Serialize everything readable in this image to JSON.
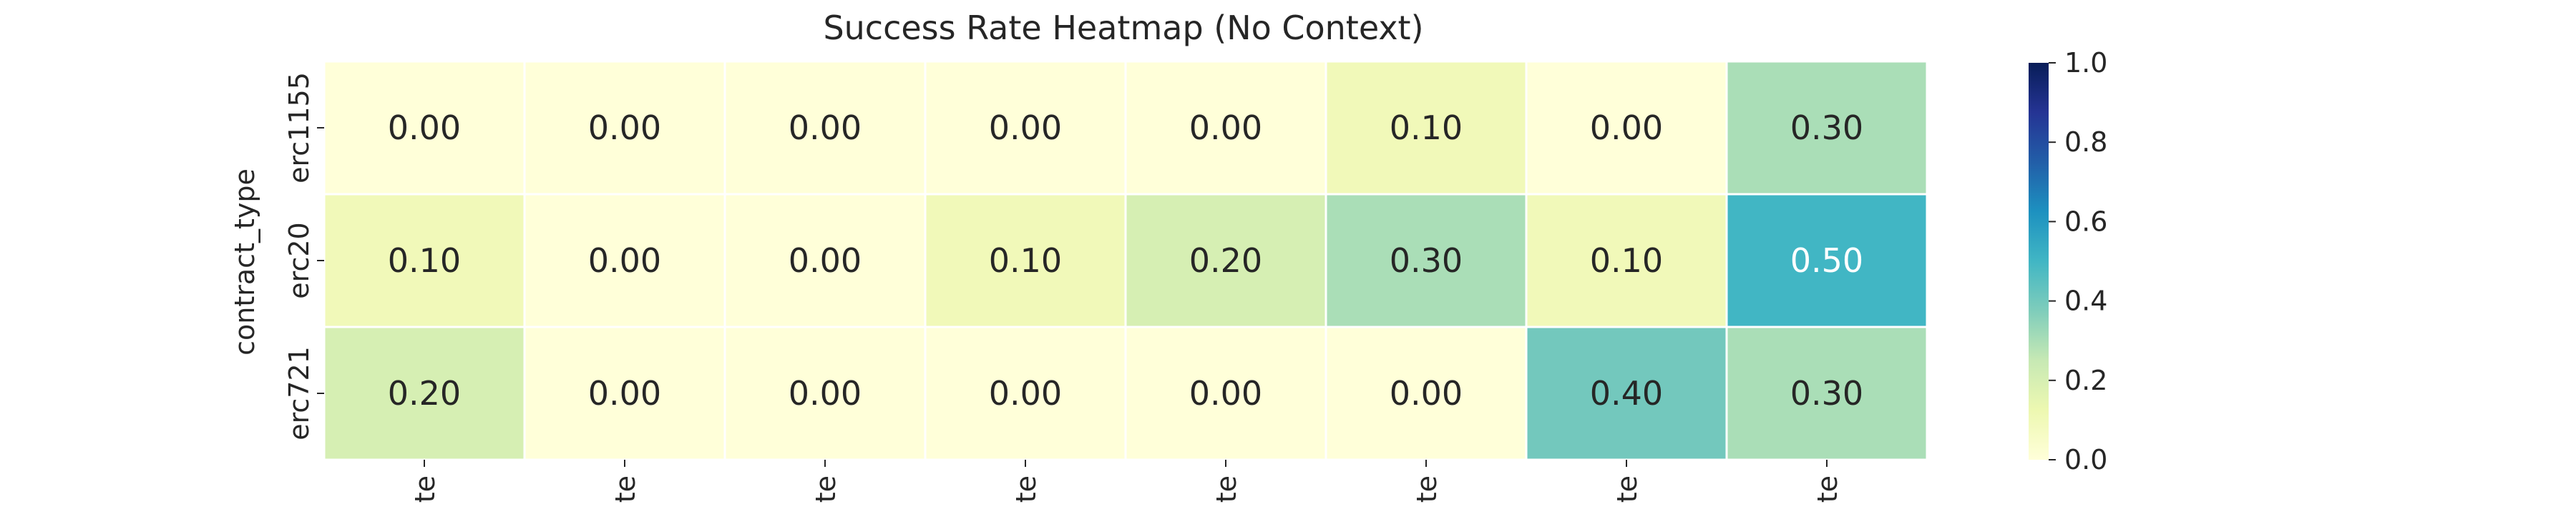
{
  "chart_data": {
    "type": "heatmap",
    "title": "Success Rate Heatmap (No Context)",
    "ylabel": "contract_type",
    "xlabel": "",
    "rows": [
      "erc1155",
      "erc20",
      "erc721"
    ],
    "columns": [
      "te",
      "te",
      "te",
      "te",
      "te",
      "te",
      "te",
      "te"
    ],
    "values": [
      [
        0.0,
        0.0,
        0.0,
        0.0,
        0.0,
        0.1,
        0.0,
        0.3
      ],
      [
        0.1,
        0.0,
        0.0,
        0.1,
        0.2,
        0.3,
        0.1,
        0.5
      ],
      [
        0.2,
        0.0,
        0.0,
        0.0,
        0.0,
        0.0,
        0.4,
        0.3
      ]
    ],
    "value_format": "0.00",
    "colormap": "YlGnBu",
    "vmin": 0.0,
    "vmax": 1.0,
    "colorbar_ticks": [
      "0.0",
      "0.2",
      "0.4",
      "0.6",
      "0.8",
      "1.0"
    ],
    "grid": false,
    "colors": {
      "cell_border": "#ffffff",
      "text_dark": "#262626",
      "text_light": "#ffffff"
    }
  }
}
